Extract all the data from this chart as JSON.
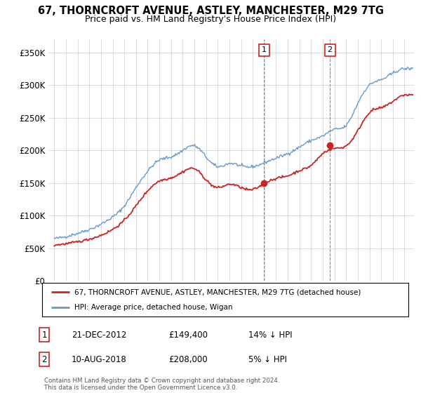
{
  "title": "67, THORNCROFT AVENUE, ASTLEY, MANCHESTER, M29 7TG",
  "subtitle": "Price paid vs. HM Land Registry's House Price Index (HPI)",
  "legend_label_red": "67, THORNCROFT AVENUE, ASTLEY, MANCHESTER, M29 7TG (detached house)",
  "legend_label_blue": "HPI: Average price, detached house, Wigan",
  "annotation1": {
    "label": "1",
    "date": "21-DEC-2012",
    "price": "£149,400",
    "pct": "14% ↓ HPI"
  },
  "annotation2": {
    "label": "2",
    "date": "10-AUG-2018",
    "price": "£208,000",
    "pct": "5% ↓ HPI"
  },
  "copyright": "Contains HM Land Registry data © Crown copyright and database right 2024.\nThis data is licensed under the Open Government Licence v3.0.",
  "ylim": [
    0,
    370000
  ],
  "yticks": [
    0,
    50000,
    100000,
    150000,
    200000,
    250000,
    300000,
    350000
  ],
  "ytick_labels": [
    "£0",
    "£50K",
    "£100K",
    "£150K",
    "£200K",
    "£250K",
    "£300K",
    "£350K"
  ],
  "hpi_color": "#6699cc",
  "price_color": "#cc2222",
  "marker1_x": 2012.97,
  "marker1_y": 149400,
  "marker2_x": 2018.61,
  "marker2_y": 208000,
  "xmin": 1994.5,
  "xmax": 2025.8,
  "xticks": [
    1995,
    1996,
    1997,
    1998,
    1999,
    2000,
    2001,
    2002,
    2003,
    2004,
    2005,
    2006,
    2007,
    2008,
    2009,
    2010,
    2011,
    2012,
    2013,
    2014,
    2015,
    2016,
    2017,
    2018,
    2019,
    2020,
    2021,
    2022,
    2023,
    2024,
    2025
  ],
  "hpi_anchors_x": [
    1995,
    1996,
    1997,
    1998,
    1999,
    2000,
    2001,
    2002,
    2003,
    2004,
    2005,
    2006,
    2007,
    2008,
    2009,
    2010,
    2011,
    2012,
    2013,
    2014,
    2015,
    2016,
    2017,
    2018,
    2019,
    2020,
    2021,
    2022,
    2023,
    2024,
    2025
  ],
  "hpi_anchors_y": [
    65000,
    68000,
    73000,
    79000,
    87000,
    98000,
    115000,
    143000,
    168000,
    185000,
    190000,
    200000,
    207000,
    190000,
    175000,
    180000,
    176000,
    175000,
    181000,
    188000,
    195000,
    205000,
    215000,
    222000,
    232000,
    238000,
    272000,
    300000,
    308000,
    318000,
    325000
  ],
  "price_anchors_x": [
    1995,
    1996,
    1997,
    1998,
    1999,
    2000,
    2001,
    2002,
    2003,
    2004,
    2005,
    2006,
    2007,
    2008,
    2009,
    2010,
    2011,
    2012,
    2013,
    2014,
    2015,
    2016,
    2017,
    2018,
    2019,
    2020,
    2021,
    2022,
    2023,
    2024,
    2025
  ],
  "price_anchors_y": [
    55000,
    57000,
    60000,
    64000,
    70000,
    79000,
    93000,
    115000,
    138000,
    153000,
    158000,
    167000,
    172000,
    155000,
    143000,
    148000,
    143000,
    140000,
    149400,
    157000,
    161000,
    169000,
    177000,
    195000,
    203000,
    207000,
    230000,
    258000,
    265000,
    275000,
    285000
  ],
  "hpi_noise_std": 1200,
  "price_noise_std": 900
}
